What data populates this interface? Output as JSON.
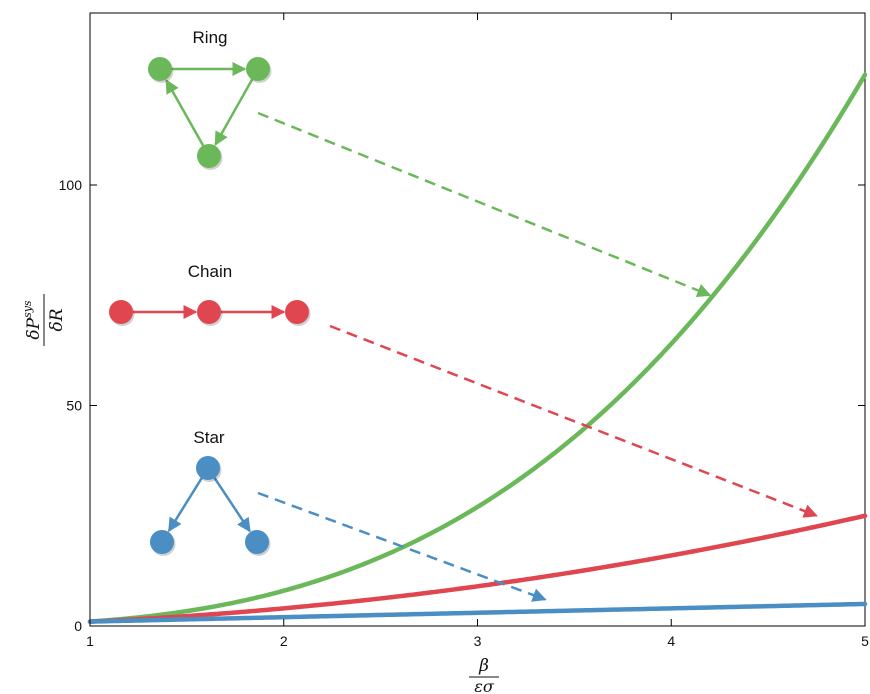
{
  "chart_data": {
    "type": "line",
    "x_ticks": [
      "1",
      "2",
      "3",
      "4",
      "5"
    ],
    "y_ticks": [
      "0",
      "50",
      "100"
    ],
    "xlim": [
      1,
      5
    ],
    "ylim": [
      0,
      139
    ],
    "xlabel": {
      "numerator": "β",
      "denominator": "εσ"
    },
    "ylabel": {
      "numerator": "δP",
      "superscript": "sys",
      "denominator": "δR"
    },
    "x": [
      1.0,
      1.25,
      1.5,
      1.75,
      2.0,
      2.25,
      2.5,
      2.75,
      3.0,
      3.25,
      3.5,
      3.75,
      4.0,
      4.25,
      4.5,
      4.75,
      5.0
    ],
    "series": [
      {
        "name": "Ring",
        "color": "#6bb85a",
        "values": [
          1.0,
          1.95,
          3.38,
          5.36,
          8.0,
          11.39,
          15.63,
          20.8,
          27.0,
          34.33,
          42.88,
          52.73,
          64.0,
          76.77,
          91.13,
          107.17,
          125.0
        ]
      },
      {
        "name": "Chain",
        "color": "#e0464f",
        "values": [
          1.0,
          1.56,
          2.25,
          3.06,
          4.0,
          5.06,
          6.25,
          7.56,
          9.0,
          10.56,
          12.25,
          14.06,
          16.0,
          18.06,
          20.25,
          22.56,
          25.0
        ]
      },
      {
        "name": "Star",
        "color": "#4a8ec4",
        "values": [
          1.0,
          1.25,
          1.5,
          1.75,
          2.0,
          2.25,
          2.5,
          2.75,
          3.0,
          3.25,
          3.5,
          3.75,
          4.0,
          4.25,
          4.5,
          4.75,
          5.0
        ]
      }
    ],
    "annotations": [
      {
        "label": "Ring",
        "color": "#6bb85a",
        "topology": "ring",
        "arrow_to": {
          "x": 4.2,
          "y": 75
        }
      },
      {
        "label": "Chain",
        "color": "#e0464f",
        "topology": "chain",
        "arrow_to": {
          "x": 4.75,
          "y": 25
        }
      },
      {
        "label": "Star",
        "color": "#4a8ec4",
        "topology": "star",
        "arrow_to": {
          "x": 3.35,
          "y": 6
        }
      }
    ],
    "grid": false,
    "legend": "none"
  }
}
